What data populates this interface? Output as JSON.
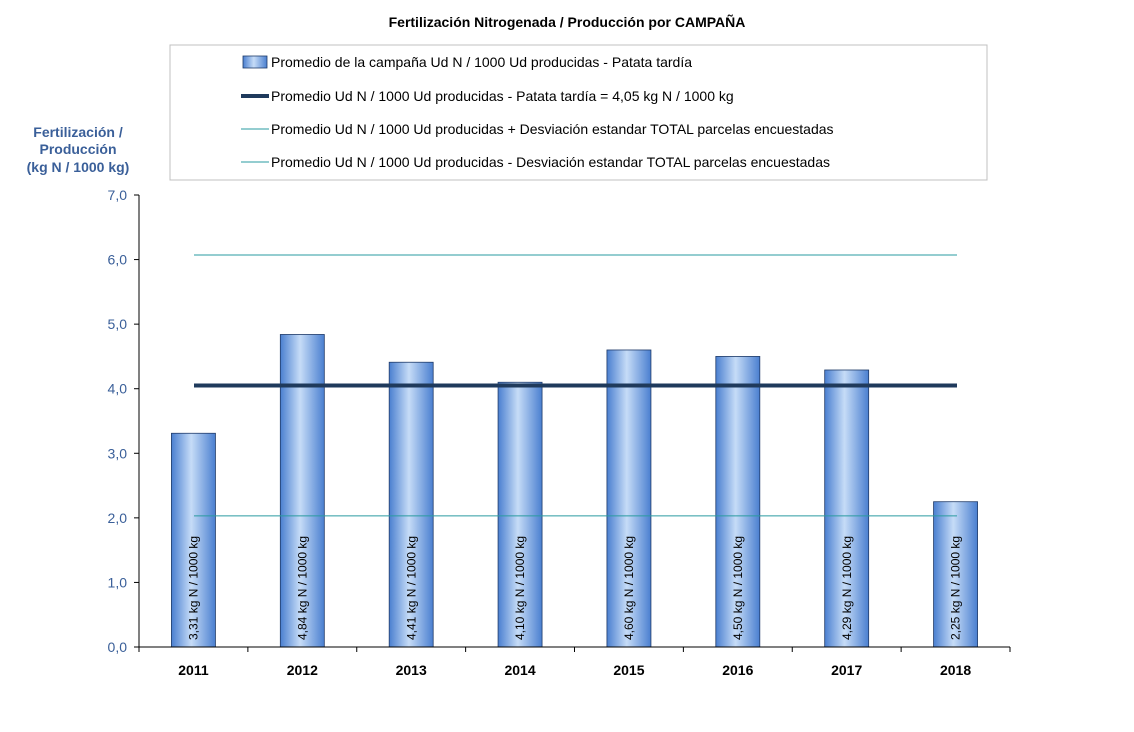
{
  "chart_data": {
    "type": "bar",
    "title": "Fertilización Nitrogenada / Producción por CAMPAÑA",
    "ylabel": [
      "Fertilización /",
      "Producción",
      "(kg N / 1000 kg)"
    ],
    "xlabel": "",
    "ylim": [
      0,
      7
    ],
    "yticks": [
      "0,0",
      "1,0",
      "2,0",
      "3,0",
      "4,0",
      "5,0",
      "6,0",
      "7,0"
    ],
    "categories": [
      "2011",
      "2012",
      "2013",
      "2014",
      "2015",
      "2016",
      "2017",
      "2018"
    ],
    "series": [
      {
        "name": "Promedio de la campaña Ud N / 1000 Ud producidas - Patata tardía",
        "kind": "bar",
        "values": [
          3.31,
          4.84,
          4.41,
          4.1,
          4.6,
          4.5,
          4.29,
          2.25
        ],
        "labels": [
          "3,31 kg N / 1000 kg",
          "4,84 kg N / 1000 kg",
          "4,41 kg N / 1000 kg",
          "4,10 kg N / 1000 kg",
          "4,60 kg N / 1000 kg",
          "4,50 kg N / 1000 kg",
          "4,29 kg N / 1000 kg",
          "2,25 kg N / 1000 kg"
        ]
      },
      {
        "name": "Promedio Ud N / 1000 Ud producidas - Patata tardía = 4,05 kg N / 1000 kg",
        "kind": "line",
        "value": 4.05
      },
      {
        "name": "Promedio Ud N / 1000 Ud producidas + Desviación estandar TOTAL parcelas encuestadas",
        "kind": "line",
        "value": 6.07
      },
      {
        "name": "Promedio Ud N / 1000 Ud producidas - Desviación estandar TOTAL parcelas encuestadas",
        "kind": "line",
        "value": 2.03
      }
    ],
    "colors": {
      "bar_light": "#c6dcf7",
      "bar_dark": "#4a7fd0",
      "bar_border": "#1f3a68",
      "mean_line": "#1f3a5c",
      "sd_line": "#2a9ba0",
      "axis": "#000000",
      "ytick_text": "#3a5f99"
    },
    "grid": false,
    "legend_position": "top"
  }
}
